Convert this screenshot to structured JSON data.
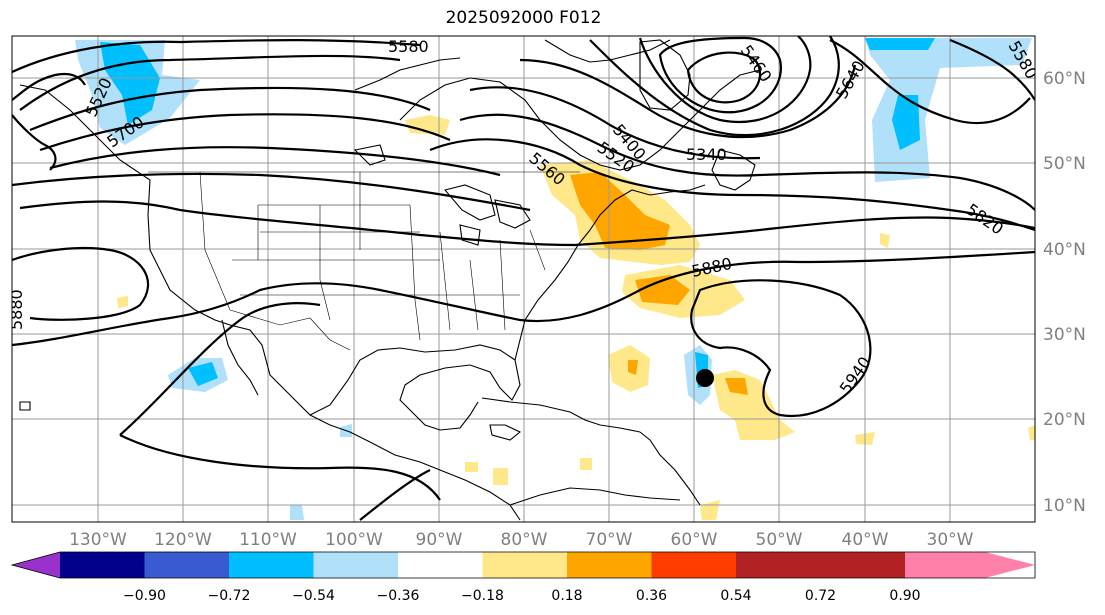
{
  "title": "2025092000 F012",
  "lon_labels": [
    "130°W",
    "120°W",
    "110°W",
    "100°W",
    "90°W",
    "80°W",
    "70°W",
    "60°W",
    "50°W",
    "40°W",
    "30°W"
  ],
  "lat_labels": [
    "60°N",
    "50°N",
    "40°N",
    "30°N",
    "20°N",
    "10°N"
  ],
  "contour_labels": [
    "5580",
    "5460",
    "5640",
    "5580",
    "5340",
    "5400",
    "5520",
    "5560",
    "5820",
    "5880",
    "5940",
    "5880",
    "5700",
    "5520"
  ],
  "colorbar": {
    "colors": [
      "#9932cc",
      "#00008b",
      "#3a5bcf",
      "#00bfff",
      "#b0e0fa",
      "#ffffff",
      "#ffe88a",
      "#ffa500",
      "#ff3c00",
      "#b22222",
      "#ff80a8"
    ],
    "tick_labels": [
      "−0.90",
      "−0.72",
      "−0.54",
      "−0.36",
      "−0.18",
      "0.18",
      "0.36",
      "0.54",
      "0.72",
      "0.90"
    ]
  },
  "storm_marker_color": "#000000"
}
